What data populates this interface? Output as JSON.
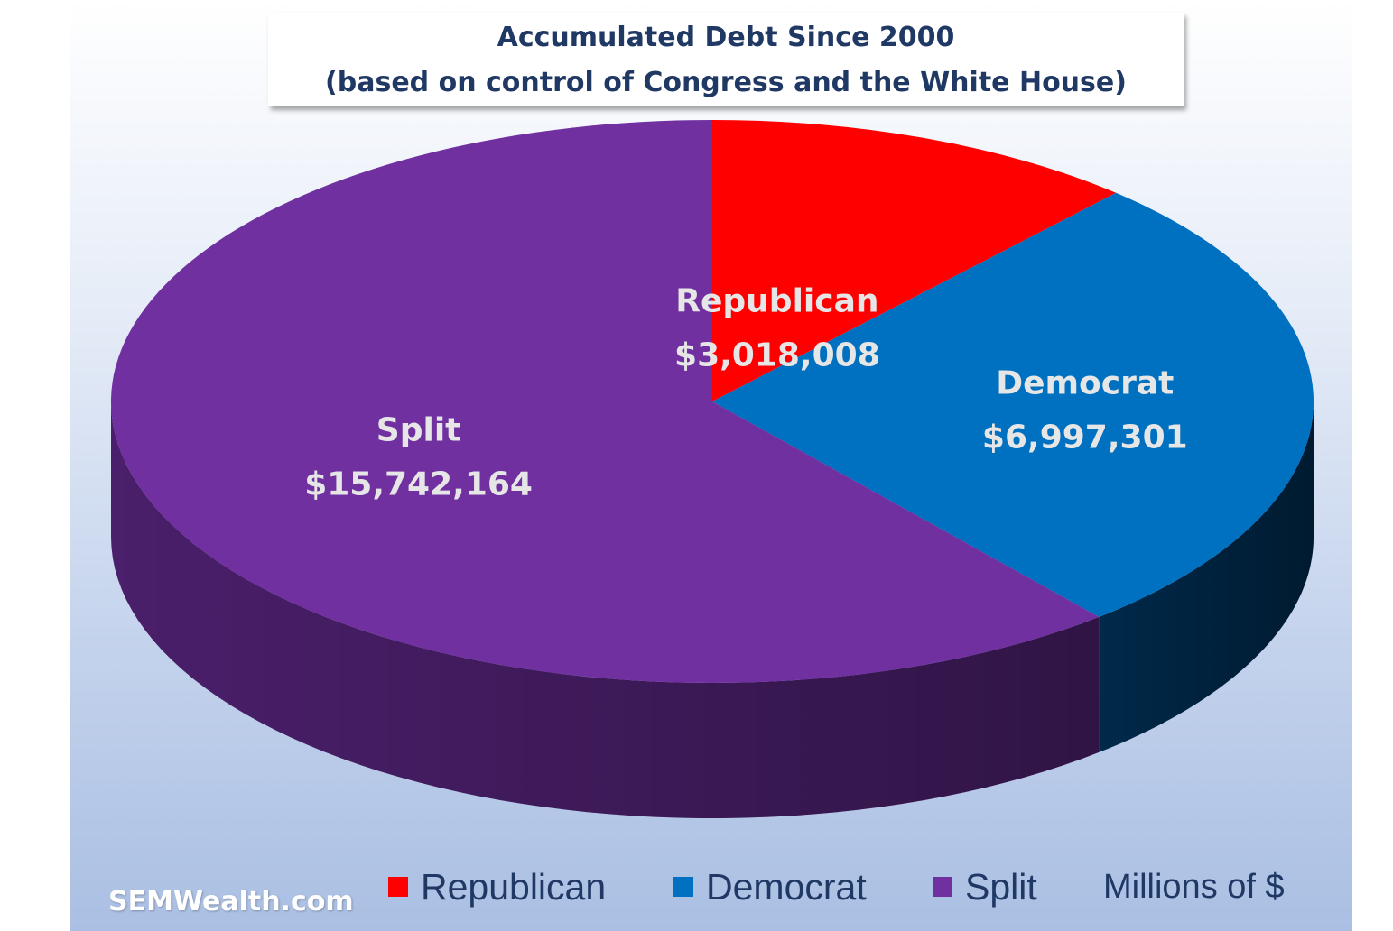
{
  "title_line1": "Accumulated Debt Since 2000",
  "title_line2": "(based on control of Congress and the White House)",
  "units_note": "Millions of $",
  "watermark": "SEMWealth.com",
  "chart_data": {
    "type": "pie",
    "style": "3d",
    "start_angle": "12 o'clock, clockwise",
    "series": [
      {
        "name": "Republican",
        "value": 3018008,
        "label": "$3,018,008",
        "color": "#ff0000",
        "side_color": "#9a0000"
      },
      {
        "name": "Democrat",
        "value": 6997301,
        "label": "$6,997,301",
        "color": "#0070c0",
        "side_color": "#00294a"
      },
      {
        "name": "Split",
        "value": 15742164,
        "label": "$15,742,164",
        "color": "#7030a0",
        "side_color": "#4a1f6b"
      }
    ],
    "legend": {
      "position": "bottom",
      "items": [
        "Republican",
        "Democrat",
        "Split"
      ]
    }
  }
}
